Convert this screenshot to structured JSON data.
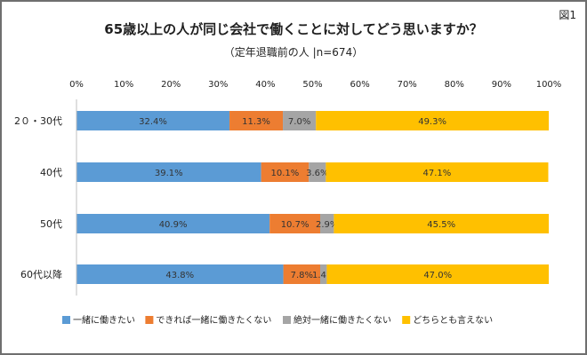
{
  "figure_label": "図1",
  "chart_data": {
    "type": "bar",
    "orientation": "horizontal",
    "stacked": true,
    "title": "65歳以上の人が同じ会社で働くことに対してどう思いますか？",
    "subtitle": "（定年退職前の人 |n=674）",
    "categories": [
      "2０・30代",
      "40代",
      "50代",
      "60代以降"
    ],
    "x_ticks": [
      "0%",
      "10%",
      "20%",
      "30%",
      "40%",
      "50%",
      "60%",
      "70%",
      "80%",
      "90%",
      "100%"
    ],
    "xlim": [
      0,
      100
    ],
    "grid": false,
    "legend_position": "bottom",
    "series": [
      {
        "name": "一緒に働きたい",
        "color": "#5b9bd5",
        "values": [
          32.4,
          39.1,
          40.9,
          43.8
        ],
        "labels": [
          "32.4%",
          "39.1%",
          "40.9%",
          "43.8%"
        ]
      },
      {
        "name": "できれば一緒に働きたくない",
        "color": "#ed7d31",
        "values": [
          11.3,
          10.1,
          10.7,
          7.8
        ],
        "labels": [
          "11.3%",
          "10.1%",
          "10.7%",
          "7.8%"
        ]
      },
      {
        "name": "絶対一緒に働きたくない",
        "color": "#a5a5a5",
        "values": [
          7.0,
          3.6,
          2.9,
          1.4
        ],
        "labels": [
          "7.0%",
          "3.6%",
          "2.9%",
          "1.4%"
        ]
      },
      {
        "name": "どちらとも言えない",
        "color": "#ffc000",
        "values": [
          49.3,
          47.1,
          45.5,
          47.0
        ],
        "labels": [
          "49.3%",
          "47.1%",
          "45.5%",
          "47.0%"
        ]
      }
    ]
  }
}
